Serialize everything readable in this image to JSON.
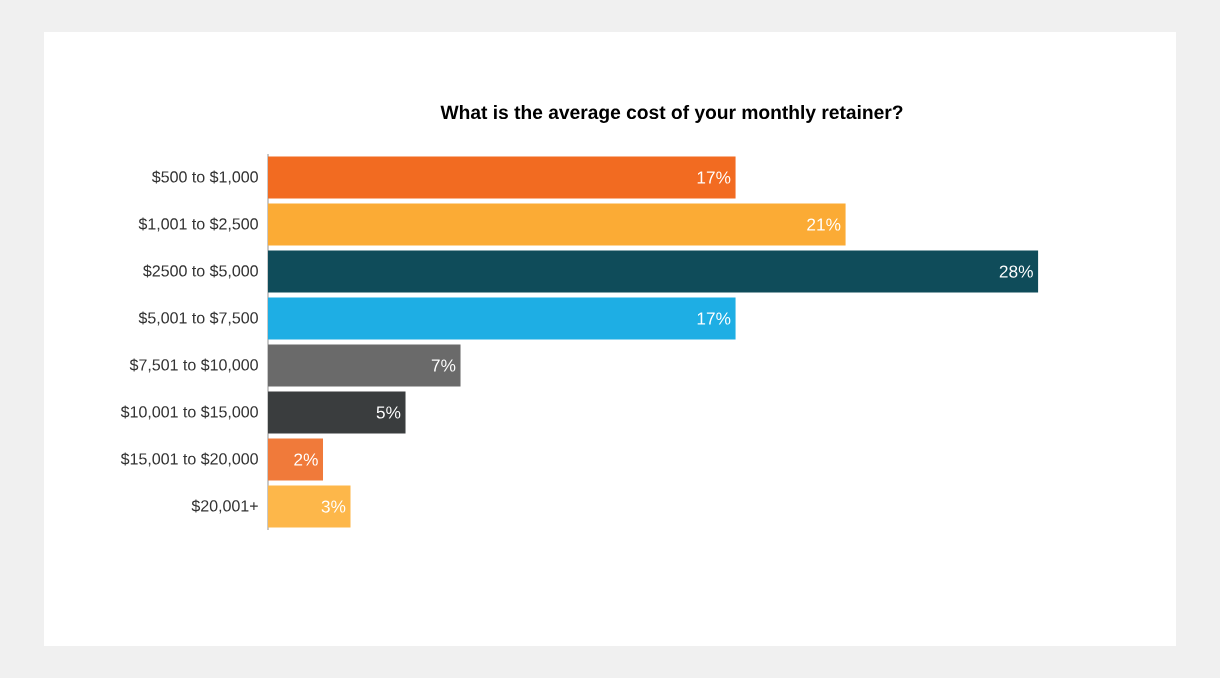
{
  "chart_data": {
    "type": "bar",
    "orientation": "horizontal",
    "title": "What is the average cost of your monthly retainer?",
    "categories": [
      "$500 to $1,000",
      "$1,001 to $2,500",
      "$2500 to $5,000",
      "$5,001 to $7,500",
      "$7,501 to $10,000",
      "$10,001 to $15,000",
      "$15,001 to $20,000",
      "$20,001+"
    ],
    "values": [
      17,
      21,
      28,
      17,
      7,
      5,
      2,
      3
    ],
    "value_labels": [
      "17%",
      "21%",
      "28%",
      "17%",
      "7%",
      "5%",
      "2%",
      "3%"
    ],
    "colors": [
      "#f26b21",
      "#fbab35",
      "#0f4c5a",
      "#1eaee4",
      "#6a6a6a",
      "#3a3d3e",
      "#f07a3a",
      "#fdb74a"
    ],
    "tick_labels": "y"
  }
}
